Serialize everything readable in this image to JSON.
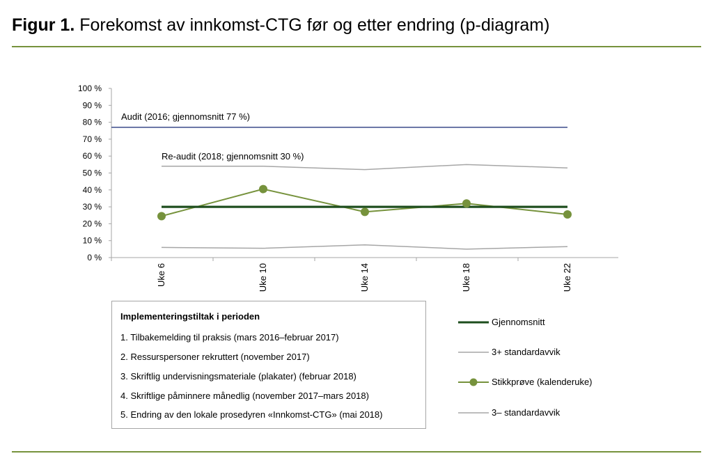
{
  "figure": {
    "label": "Figur 1.",
    "title": "Forekomst av innkomst-CTG før og etter endring (p-diagram)"
  },
  "colors": {
    "rule": "#76923c",
    "mean_line": "#1d4d1d",
    "sample_line": "#76923c",
    "control_limit": "#a6a6a6",
    "audit_line": "#3a4a8a",
    "axis": "#a6a6a6"
  },
  "chart_data": {
    "type": "line",
    "categories": [
      "Uke 6",
      "Uke 10",
      "Uke 14",
      "Uke 18",
      "Uke 22"
    ],
    "ylim": [
      0,
      100
    ],
    "yticks": [
      "0 %",
      "10 %",
      "20 %",
      "30 %",
      "40 %",
      "50 %",
      "60 %",
      "70 %",
      "80 %",
      "90 %",
      "100 %"
    ],
    "grid": false,
    "legend_position": "right",
    "series": [
      {
        "name": "Gjennomsnitt",
        "values": [
          30,
          30,
          30,
          30,
          30
        ],
        "color": "#1d4d1d"
      },
      {
        "name": "3+ standardavvik",
        "values": [
          54,
          54,
          52,
          55,
          53
        ],
        "color": "#a6a6a6"
      },
      {
        "name": "Stikkprøve (kalenderuke)",
        "values": [
          24.5,
          40.5,
          27,
          32,
          25.5
        ],
        "color": "#76923c"
      },
      {
        "name": "3– standardavvik",
        "values": [
          6,
          5.5,
          7.5,
          5,
          6.5
        ],
        "color": "#a6a6a6"
      }
    ],
    "reference_lines": [
      {
        "value": 77,
        "color": "#3a4a8a"
      }
    ],
    "annotations": [
      "Audit (2016; gjennomsnitt 77 %)",
      "Re-audit (2018; gjennomsnitt 30 %)"
    ]
  },
  "info_box": {
    "heading": "Implementeringstiltak i perioden",
    "items": [
      "1. Tilbakemelding til praksis (mars 2016–februar 2017)",
      "2. Ressurspersoner rekruttert (november 2017)",
      "3. Skriftlig undervisningsmateriale (plakater) (februar 2018)",
      "4. Skriftlige påminnere månedlig (november 2017–mars 2018)",
      "5. Endring av den lokale prosedyren «Innkomst-CTG» (mai 2018)"
    ]
  },
  "legend": {
    "items": [
      {
        "label": "Gjennomsnitt",
        "style": "thick",
        "color": "#1d4d1d"
      },
      {
        "label": "3+ standardavvik",
        "style": "thin",
        "color": "#a6a6a6"
      },
      {
        "label": "Stikkprøve (kalenderuke)",
        "style": "marker",
        "color": "#76923c"
      },
      {
        "label": "3– standardavvik",
        "style": "thin",
        "color": "#a6a6a6"
      }
    ]
  }
}
